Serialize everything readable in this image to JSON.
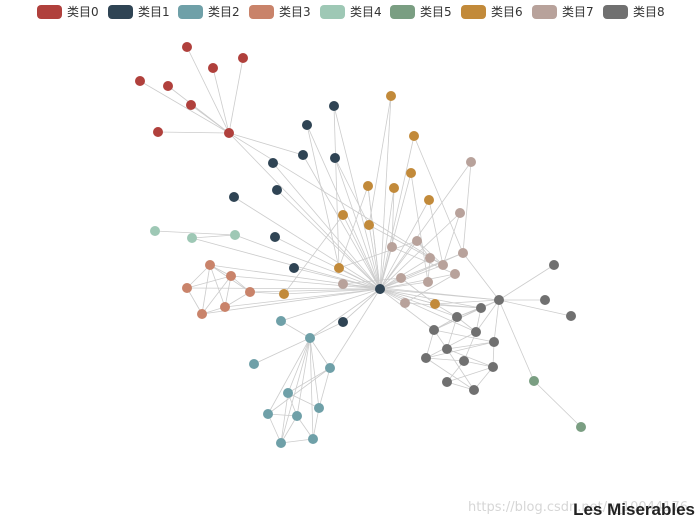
{
  "chart_data": {
    "type": "graph",
    "title": "Les Miserables",
    "categories": [
      {
        "name": "类目0",
        "color": "#b0403c"
      },
      {
        "name": "类目1",
        "color": "#2f4454"
      },
      {
        "name": "类目2",
        "color": "#6fa0a8"
      },
      {
        "name": "类目3",
        "color": "#c9836a"
      },
      {
        "name": "类目4",
        "color": "#9ec8b5"
      },
      {
        "name": "类目5",
        "color": "#7a9e82"
      },
      {
        "name": "类目6",
        "color": "#c28a3a"
      },
      {
        "name": "类目7",
        "color": "#b8a29b"
      },
      {
        "name": "类目8",
        "color": "#707070"
      }
    ],
    "legend_position": "top",
    "edge_color": "#cccccc"
  },
  "watermark": "https://blog.csdn.net/u_10044176"
}
